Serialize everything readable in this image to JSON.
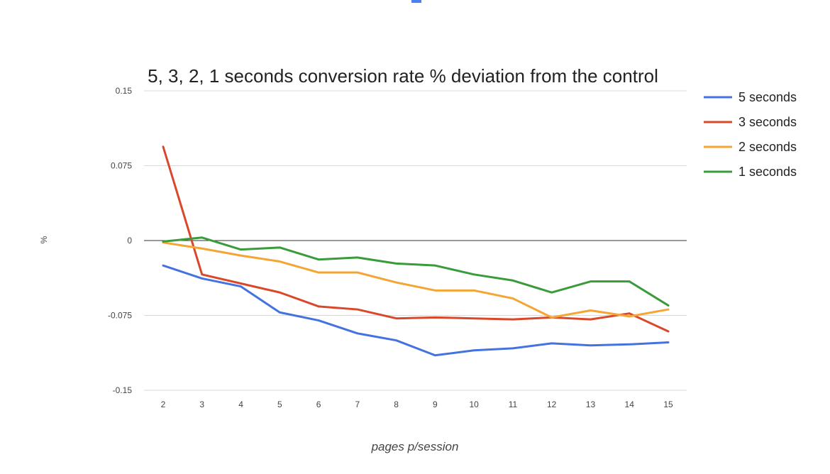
{
  "chart_data": {
    "type": "line",
    "title": "5, 3, 2, 1 seconds conversion rate % deviation from the control",
    "xlabel": "pages p/session",
    "ylabel": "%",
    "x": [
      2,
      3,
      4,
      5,
      6,
      7,
      8,
      9,
      10,
      11,
      12,
      13,
      14,
      15
    ],
    "ylim": [
      -0.15,
      0.15
    ],
    "yticks": [
      "0.15",
      "0.075",
      "0",
      "-0.075",
      "-0.15"
    ],
    "ytick_values": [
      0.15,
      0.075,
      0,
      -0.075,
      -0.15
    ],
    "grid": true,
    "legend": "right",
    "series": [
      {
        "name": "5 seconds",
        "color": "#4472e0",
        "values": [
          -0.025,
          -0.038,
          -0.046,
          -0.072,
          -0.08,
          -0.093,
          -0.1,
          -0.115,
          -0.11,
          -0.108,
          -0.103,
          -0.105,
          -0.104,
          -0.102
        ]
      },
      {
        "name": "3 seconds",
        "color": "#d9482b",
        "values": [
          0.094,
          -0.034,
          -0.043,
          -0.052,
          -0.066,
          -0.069,
          -0.078,
          -0.077,
          -0.078,
          -0.079,
          -0.077,
          -0.079,
          -0.073,
          -0.091
        ]
      },
      {
        "name": "2 seconds",
        "color": "#f4a534",
        "values": [
          -0.002,
          -0.008,
          -0.015,
          -0.021,
          -0.032,
          -0.032,
          -0.042,
          -0.05,
          -0.05,
          -0.058,
          -0.077,
          -0.07,
          -0.076,
          -0.069
        ]
      },
      {
        "name": "1 seconds",
        "color": "#3a9b3a",
        "values": [
          -0.001,
          0.003,
          -0.009,
          -0.007,
          -0.019,
          -0.017,
          -0.023,
          -0.025,
          -0.034,
          -0.04,
          -0.052,
          -0.041,
          -0.041,
          -0.065
        ]
      }
    ]
  }
}
